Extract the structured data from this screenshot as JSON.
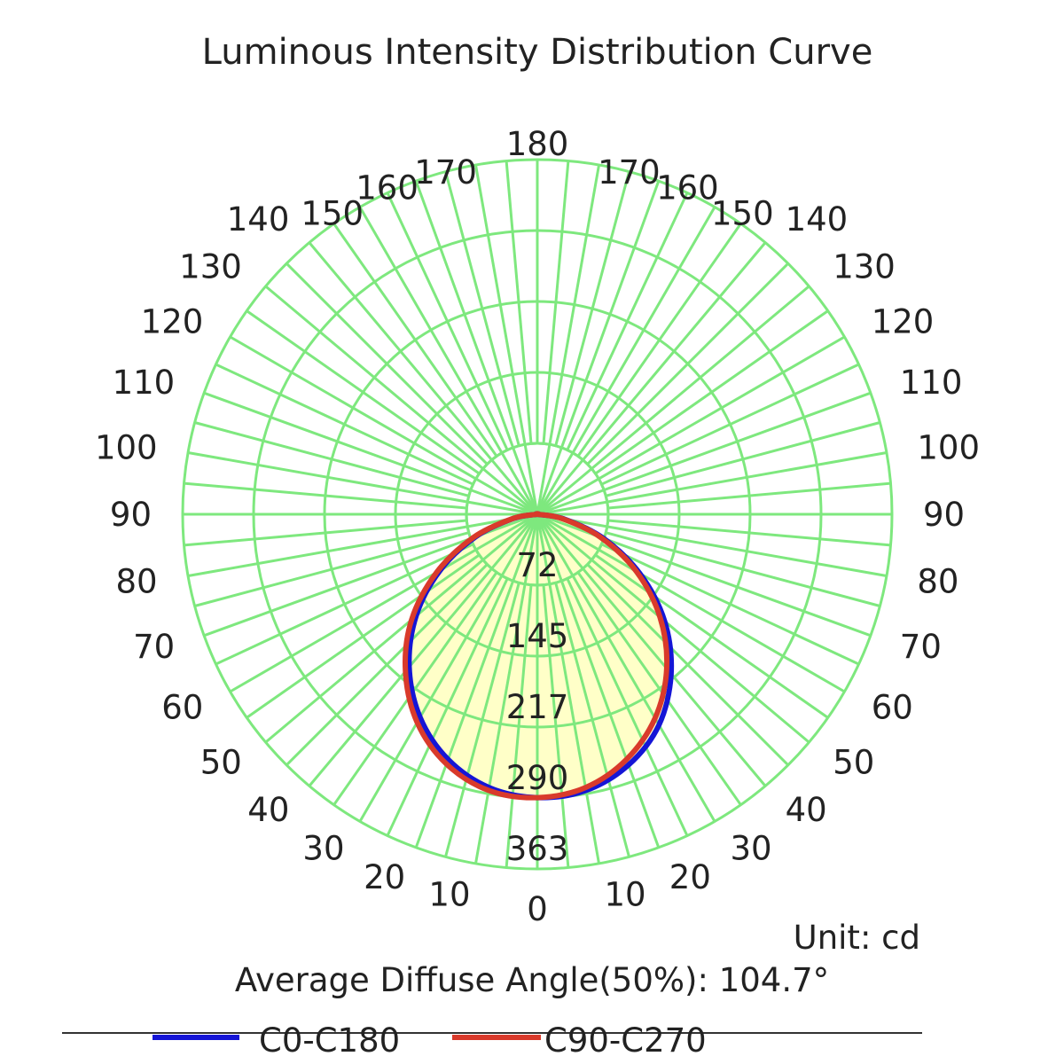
{
  "chart_data": {
    "type": "polar",
    "title": "Luminous Intensity Distribution Curve",
    "unit_label": "Unit: cd",
    "diffuse_angle_label": "Average Diffuse Angle(50%): 104.7°",
    "radial_max": 363,
    "radial_tick_labels": [
      "72",
      "145",
      "217",
      "290",
      "363"
    ],
    "angle_labels_left": [
      "0",
      "10",
      "20",
      "30",
      "40",
      "50",
      "60",
      "70",
      "80",
      "90",
      "100",
      "110",
      "120",
      "130",
      "140",
      "150",
      "160",
      "170",
      "180"
    ],
    "angle_labels_right": [
      "10",
      "20",
      "30",
      "40",
      "50",
      "60",
      "70",
      "80",
      "90",
      "100",
      "110",
      "120",
      "130",
      "140",
      "150",
      "160",
      "170"
    ],
    "series": [
      {
        "name": "C0-C180",
        "color": "#1515d6",
        "angles": [
          0,
          10,
          20,
          30,
          40,
          50,
          60,
          70,
          80,
          90
        ],
        "left": [
          290,
          284,
          267,
          240,
          204,
          162,
          115,
          67,
          25,
          0
        ],
        "right": [
          290,
          287,
          273,
          249,
          213,
          170,
          121,
          72,
          28,
          0
        ]
      },
      {
        "name": "C90-C270",
        "color": "#d93a2b",
        "angles": [
          0,
          10,
          20,
          30,
          40,
          50,
          60,
          70,
          80,
          90
        ],
        "left": [
          290,
          287,
          272,
          246,
          210,
          168,
          119,
          70,
          26,
          0
        ],
        "right": [
          290,
          284,
          267,
          241,
          206,
          164,
          117,
          69,
          26,
          0
        ]
      }
    ],
    "fill_color": "#ffffc8",
    "grid_color": "#7ee87e"
  }
}
